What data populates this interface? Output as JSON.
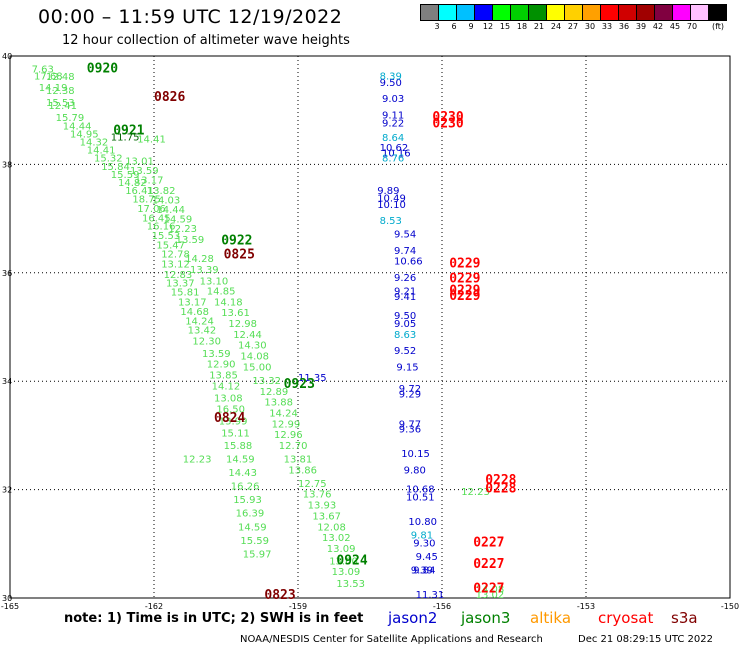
{
  "header": {
    "title": "00:00 – 11:59 UTC 12/19/2022",
    "subtitle": "12 hour collection of altimeter wave heights"
  },
  "colorbar": {
    "colors": [
      "#7f7f7f",
      "#00ffff",
      "#00c0ff",
      "#0000ff",
      "#00ff00",
      "#00d000",
      "#009000",
      "#ffff00",
      "#ffd000",
      "#ffa000",
      "#ff0000",
      "#d00000",
      "#a00000",
      "#800040",
      "#ff00ff",
      "#ffc0ff",
      "#000000"
    ],
    "ticks": [
      "3",
      "6",
      "9",
      "12",
      "15",
      "18",
      "21",
      "24",
      "27",
      "30",
      "33",
      "36",
      "39",
      "42",
      "45",
      "70"
    ],
    "unit": "(ft)"
  },
  "footer": {
    "note": "note:  1) Time is in UTC;  2) SWH is in feet",
    "credit": "NOAA/NESDIS Center for Satellite Applications and Research",
    "timestamp": "Dec 21 08:29:15 UTC 2022",
    "satellites": [
      {
        "name": "jason2",
        "color": "#0000cc"
      },
      {
        "name": "jason3",
        "color": "#008000"
      },
      {
        "name": "altika",
        "color": "#ff9900"
      },
      {
        "name": "cryosat",
        "color": "#ff0000"
      },
      {
        "name": "s3a",
        "color": "#800000"
      }
    ]
  },
  "chart_data": {
    "type": "scatter",
    "title": "",
    "xlabel": "",
    "ylabel": "",
    "xlim": [
      -165,
      -150
    ],
    "ylim": [
      30,
      40
    ],
    "x_ticks": [
      -165,
      -162,
      -159,
      -156,
      -153,
      -150
    ],
    "x_tick_labels": [
      "-165",
      "-162",
      "-159",
      "-156",
      "-153",
      "-150"
    ],
    "y_ticks": [
      30,
      32,
      34,
      36,
      38,
      40
    ],
    "y_tick_labels": [
      "30",
      "32",
      "34",
      "36",
      "38",
      "40"
    ],
    "grid": "dotted",
    "palette": {
      "lg": "#33cc33",
      "g": "#00a000",
      "dg": "#006400",
      "mr": "#800000",
      "bl": "#0000cc",
      "cy": "#00aacc",
      "rd": "#ff0000"
    },
    "sample_colors": {
      "lg": "#55dd55"
    },
    "series": [
      {
        "name": "altika",
        "color": "#55dd55",
        "points": [
          [
            -164.55,
            39.7,
            "7.63"
          ],
          [
            -164.25,
            39.56,
            "12.48"
          ],
          [
            -164.5,
            39.57,
            "17.68"
          ],
          [
            -164.25,
            39.3,
            "12.38"
          ],
          [
            -164.4,
            39.35,
            "14.19"
          ],
          [
            -164.2,
            39.02,
            "12.41"
          ],
          [
            -164.25,
            39.08,
            "15.53"
          ],
          [
            -164.05,
            38.8,
            "15.79"
          ],
          [
            -163.9,
            38.64,
            "14.44"
          ],
          [
            -163.75,
            38.5,
            "14.95"
          ],
          [
            -163.55,
            38.35,
            "14.32"
          ],
          [
            -163.4,
            38.2,
            "14.41"
          ],
          [
            -163.25,
            38.05,
            "15.32"
          ],
          [
            -163.1,
            37.9,
            "15.84"
          ],
          [
            -162.9,
            37.75,
            "15.59"
          ],
          [
            -162.75,
            37.6,
            "14.82"
          ],
          [
            -162.6,
            37.45,
            "16.41"
          ],
          [
            -162.45,
            37.3,
            "18.75"
          ],
          [
            -162.35,
            37.12,
            "17.06"
          ],
          [
            -162.25,
            36.95,
            "16.45"
          ],
          [
            -162.15,
            36.8,
            "16.16"
          ],
          [
            -162.05,
            36.62,
            "15.53"
          ],
          [
            -161.95,
            36.45,
            "15.47"
          ],
          [
            -161.85,
            36.28,
            "12.78"
          ],
          [
            -161.85,
            36.1,
            "13.12"
          ],
          [
            -161.8,
            35.9,
            "12.83"
          ],
          [
            -161.75,
            35.75,
            "13.37"
          ],
          [
            -161.65,
            35.58,
            "15.81"
          ],
          [
            -161.5,
            35.4,
            "13.17"
          ],
          [
            -161.45,
            35.22,
            "14.68"
          ],
          [
            -161.35,
            35.05,
            "14.24"
          ],
          [
            -161.3,
            34.88,
            "13.42"
          ],
          [
            -161.2,
            34.68,
            "12.30"
          ],
          [
            -161.0,
            34.45,
            "13.59"
          ],
          [
            -160.9,
            34.25,
            "12.90"
          ],
          [
            -160.85,
            34.05,
            "13.85"
          ],
          [
            -160.8,
            33.85,
            "14.12"
          ],
          [
            -160.75,
            33.63,
            "13.08"
          ],
          [
            -160.7,
            33.42,
            "16.50"
          ],
          [
            -160.65,
            33.2,
            "13.99"
          ],
          [
            -160.6,
            32.98,
            "15.11"
          ],
          [
            -160.55,
            32.75,
            "15.88"
          ],
          [
            -160.5,
            32.5,
            "14.59"
          ],
          [
            -160.45,
            32.25,
            "14.43"
          ],
          [
            -160.4,
            32.0,
            "16.26"
          ],
          [
            -160.35,
            31.75,
            "15.93"
          ],
          [
            -160.3,
            31.5,
            "16.39"
          ],
          [
            -160.25,
            31.25,
            "14.59"
          ],
          [
            -160.2,
            31.0,
            "15.59"
          ],
          [
            -160.15,
            30.75,
            "15.97"
          ],
          [
            -162.35,
            38.4,
            "14.41"
          ],
          [
            -162.6,
            38.0,
            "13.01"
          ],
          [
            -162.5,
            37.82,
            "13.59"
          ],
          [
            -162.4,
            37.65,
            "13.17"
          ],
          [
            -162.15,
            37.45,
            "13.82"
          ],
          [
            -162.05,
            37.28,
            "14.03"
          ],
          [
            -161.95,
            37.1,
            "14.44"
          ],
          [
            -161.8,
            36.93,
            "14.59"
          ],
          [
            -161.7,
            36.75,
            "12.23"
          ],
          [
            -161.55,
            36.55,
            "13.59"
          ],
          [
            -161.35,
            36.2,
            "14.28"
          ],
          [
            -161.25,
            36.0,
            "13.39"
          ],
          [
            -161.05,
            35.78,
            "13.10"
          ],
          [
            -160.9,
            35.6,
            "14.85"
          ],
          [
            -160.75,
            35.4,
            "14.18"
          ],
          [
            -160.6,
            35.2,
            "13.61"
          ],
          [
            -160.45,
            35.0,
            "12.98"
          ],
          [
            -160.35,
            34.8,
            "12.44"
          ],
          [
            -160.25,
            34.6,
            "14.30"
          ],
          [
            -160.2,
            34.4,
            "14.08"
          ],
          [
            -160.15,
            34.2,
            "15.00"
          ],
          [
            -159.95,
            33.95,
            "13.32"
          ],
          [
            -159.8,
            33.75,
            "12.89"
          ],
          [
            -159.7,
            33.55,
            "13.88"
          ],
          [
            -159.6,
            33.35,
            "14.24"
          ],
          [
            -159.55,
            33.15,
            "12.99"
          ],
          [
            -159.5,
            32.95,
            "12.96"
          ],
          [
            -159.4,
            32.75,
            "12.70"
          ],
          [
            -159.3,
            32.5,
            "13.81"
          ],
          [
            -159.2,
            32.3,
            "13.86"
          ],
          [
            -159.0,
            32.05,
            "12.75"
          ],
          [
            -158.9,
            31.85,
            "13.76"
          ],
          [
            -158.8,
            31.65,
            "13.93"
          ],
          [
            -158.7,
            31.45,
            "13.67"
          ],
          [
            -158.6,
            31.25,
            "12.08"
          ],
          [
            -158.5,
            31.05,
            "13.02"
          ],
          [
            -158.4,
            30.85,
            "13.09"
          ],
          [
            -158.35,
            30.62,
            "13.60"
          ],
          [
            -158.3,
            30.42,
            "13.09"
          ],
          [
            -158.2,
            30.2,
            "13.53"
          ],
          [
            -161.4,
            32.5,
            "12.23"
          ],
          [
            -155.6,
            31.9,
            "12.23"
          ],
          [
            -155.3,
            30.1,
            "14.08"
          ],
          [
            -155.3,
            30.0,
            "13.02"
          ]
        ]
      },
      {
        "name": "jason2",
        "color": "#0000cc",
        "points": [
          [
            -157.3,
            39.45,
            "9.50"
          ],
          [
            -157.25,
            39.15,
            "9.03"
          ],
          [
            -157.25,
            38.85,
            "9.11"
          ],
          [
            -157.25,
            38.7,
            "9.22"
          ],
          [
            -157.3,
            38.25,
            "10.62"
          ],
          [
            -157.25,
            38.15,
            "10.16"
          ],
          [
            -157.35,
            37.45,
            "9.89"
          ],
          [
            -157.35,
            37.32,
            "10.49"
          ],
          [
            -157.35,
            37.2,
            "10.10"
          ],
          [
            -157.0,
            36.65,
            "9.54"
          ],
          [
            -157.0,
            36.35,
            "9.74"
          ],
          [
            -157.0,
            36.15,
            "10.66"
          ],
          [
            -157.0,
            35.85,
            "9.26"
          ],
          [
            -157.0,
            35.6,
            "9.21"
          ],
          [
            -157.0,
            35.5,
            "9.41"
          ],
          [
            -157.0,
            35.15,
            "9.50"
          ],
          [
            -157.0,
            35.0,
            "9.05"
          ],
          [
            -157.0,
            34.5,
            "9.52"
          ],
          [
            -156.95,
            34.2,
            "9.15"
          ],
          [
            -156.9,
            33.8,
            "9.72"
          ],
          [
            -156.9,
            33.7,
            "9.29"
          ],
          [
            -156.9,
            33.15,
            "9.77"
          ],
          [
            -156.9,
            33.05,
            "9.36"
          ],
          [
            -156.85,
            32.6,
            "10.15"
          ],
          [
            -156.8,
            32.3,
            "9.80"
          ],
          [
            -156.75,
            31.95,
            "10.68"
          ],
          [
            -156.75,
            31.8,
            "10.51"
          ],
          [
            -156.7,
            31.35,
            "10.80"
          ],
          [
            -156.6,
            30.95,
            "9.30"
          ],
          [
            -156.55,
            30.7,
            "9.45"
          ],
          [
            -156.6,
            30.45,
            "9.84"
          ],
          [
            -156.55,
            30.0,
            "11.31"
          ],
          [
            -159.0,
            34.0,
            "11.35"
          ],
          [
            -156.65,
            30.45,
            "9.39"
          ]
        ]
      },
      {
        "name": "jason2-light",
        "color": "#00aacc",
        "points": [
          [
            -157.3,
            39.57,
            "8.39"
          ],
          [
            -157.25,
            38.43,
            "8.64"
          ],
          [
            -157.25,
            38.05,
            "8.76"
          ],
          [
            -157.3,
            36.9,
            "8.53"
          ],
          [
            -157.0,
            34.8,
            "8.63"
          ],
          [
            -156.65,
            31.1,
            "9.81"
          ]
        ]
      },
      {
        "name": "jason3-times",
        "color": "#008000",
        "points": [
          [
            -163.4,
            39.7,
            "0920"
          ],
          [
            -162.85,
            38.55,
            "0921"
          ],
          [
            -160.6,
            36.52,
            "0922"
          ],
          [
            -159.3,
            33.87,
            "0923"
          ],
          [
            -158.2,
            30.62,
            "0924"
          ]
        ]
      },
      {
        "name": "s3a-times",
        "color": "#800000",
        "points": [
          [
            -162.0,
            39.17,
            "0826"
          ],
          [
            -160.55,
            36.26,
            "0825"
          ],
          [
            -160.75,
            33.25,
            "0824"
          ],
          [
            -159.7,
            29.98,
            "0823"
          ]
        ]
      },
      {
        "name": "cryosat-times",
        "color": "#ff0000",
        "points": [
          [
            -156.2,
            38.8,
            "0230"
          ],
          [
            -156.2,
            38.68,
            "0230"
          ],
          [
            -155.85,
            36.1,
            "0229"
          ],
          [
            -155.85,
            35.82,
            "0229"
          ],
          [
            -155.85,
            35.6,
            "0229"
          ],
          [
            -155.85,
            35.5,
            "0229"
          ],
          [
            -155.1,
            32.1,
            "0228"
          ],
          [
            -155.1,
            31.95,
            "0228"
          ],
          [
            -155.35,
            30.95,
            "0227"
          ],
          [
            -155.35,
            30.55,
            "0227"
          ],
          [
            -155.35,
            30.1,
            "0227"
          ]
        ]
      },
      {
        "name": "jason2-times-dark",
        "color": "#006400",
        "points": [
          [
            -162.9,
            38.44,
            "11.75"
          ]
        ]
      }
    ]
  }
}
